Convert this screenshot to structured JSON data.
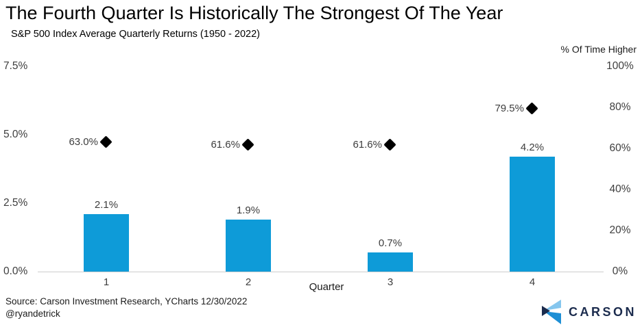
{
  "header": {
    "title": "The Fourth Quarter Is Historically The Strongest Of The Year",
    "subtitle": "S&P 500 Index Average Quarterly Returns (1950 - 2022)"
  },
  "chart_data": {
    "type": "bar",
    "title": "The Fourth Quarter Is Historically The Strongest Of The Year",
    "subtitle": "S&P 500 Index Average Quarterly Returns (1950 - 2022)",
    "categories": [
      "1",
      "2",
      "3",
      "4"
    ],
    "xlabel": "Quarter",
    "series": [
      {
        "name": "Average Quarterly Return",
        "type": "bar",
        "axis": "left",
        "values": [
          2.1,
          1.9,
          0.7,
          4.2
        ],
        "labels": [
          "2.1%",
          "1.9%",
          "0.7%",
          "4.2%"
        ],
        "color": "#0e9bd8"
      },
      {
        "name": "% Of Time Higher",
        "type": "scatter",
        "marker": "diamond",
        "axis": "right",
        "values": [
          63.0,
          61.6,
          61.6,
          79.5
        ],
        "labels": [
          "63.0%",
          "61.6%",
          "61.6%",
          "79.5%"
        ],
        "color": "#000000"
      }
    ],
    "left_axis": {
      "range": [
        0,
        7.5
      ],
      "tick_values": [
        0,
        2.5,
        5,
        7.5
      ],
      "tick_labels": [
        "0.0%",
        "2.5%",
        "5.0%",
        "7.5%"
      ]
    },
    "right_axis": {
      "label": "% Of Time Higher",
      "range": [
        0,
        100
      ],
      "tick_values": [
        0,
        20,
        40,
        60,
        80,
        100
      ],
      "tick_labels": [
        "0%",
        "20%",
        "40%",
        "60%",
        "80%",
        "100%"
      ]
    },
    "grid": false,
    "legend": "none"
  },
  "footer": {
    "source_line1": "Source: Carson Investment Research, YCharts 12/30/2022",
    "source_line2": "@ryandetrick",
    "logo_text": "CARSON"
  },
  "colors": {
    "bar": "#0e9bd8",
    "diamond": "#000000",
    "axis_text": "#3d3d3d",
    "baseline": "#cccccc",
    "logo_navy": "#1b2b4d",
    "logo_light_blue": "#85c6ee",
    "logo_mid_blue": "#1e8fd5"
  }
}
